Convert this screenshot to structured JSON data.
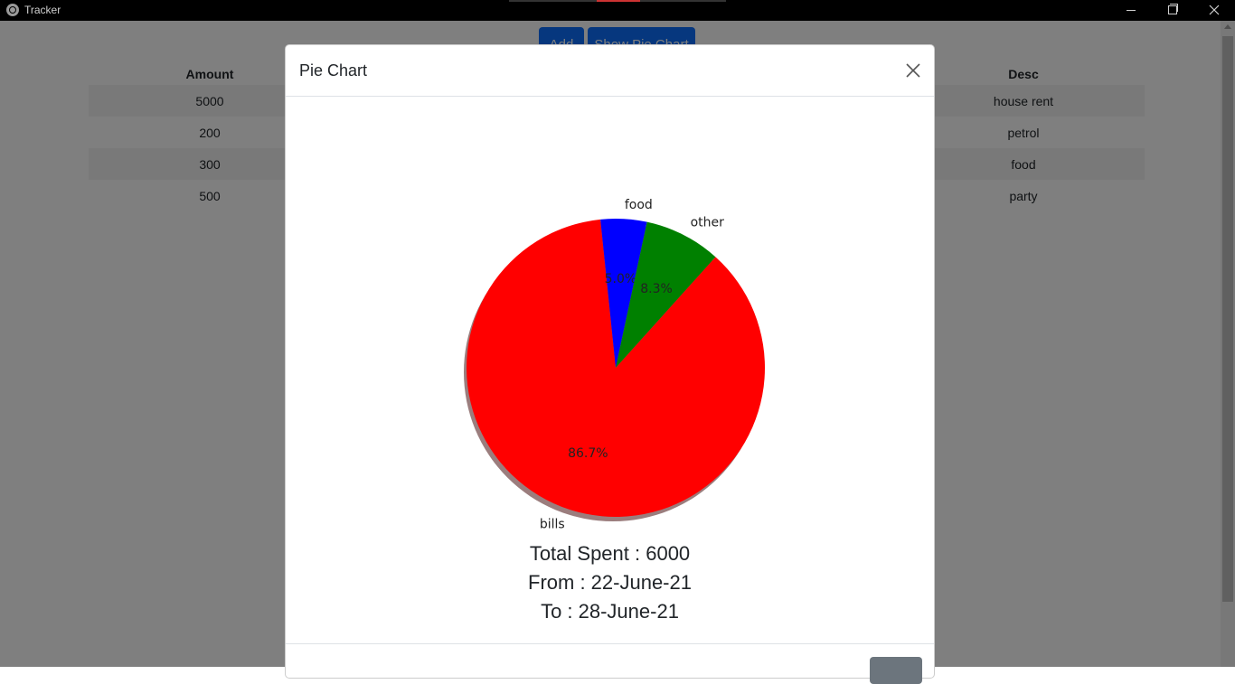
{
  "window": {
    "title": "Tracker",
    "icon": "globe-icon",
    "controls": [
      "minimize-icon",
      "maximize-icon",
      "close-icon"
    ]
  },
  "toolbar": {
    "add_label": "Add",
    "show_pie_label": "Show Pie Chart"
  },
  "table": {
    "headers": {
      "amount": "Amount",
      "desc": "Desc"
    },
    "rows": [
      {
        "amount": "5000",
        "desc": "house rent"
      },
      {
        "amount": "200",
        "desc": "petrol"
      },
      {
        "amount": "300",
        "desc": "food"
      },
      {
        "amount": "500",
        "desc": "party"
      }
    ]
  },
  "modal": {
    "title": "Pie Chart",
    "stats": {
      "total": "Total Spent : 6000",
      "from": "From : 22-June-21",
      "to": "To : 28-June-21"
    },
    "footer_button_label": ""
  },
  "chart_data": {
    "type": "pie",
    "title": "",
    "shadow": true,
    "slices": [
      {
        "label": "bills",
        "value": 86.7,
        "pct_label": "86.7%",
        "color": "#ff0000"
      },
      {
        "label": "food",
        "value": 5.0,
        "pct_label": "5.0%",
        "color": "#0000ff"
      },
      {
        "label": "other",
        "value": 8.3,
        "pct_label": "8.3%",
        "color": "#008000"
      }
    ]
  }
}
